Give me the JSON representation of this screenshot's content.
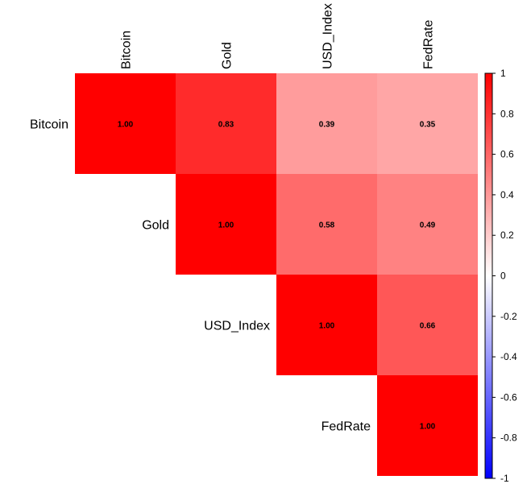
{
  "chart_data": {
    "type": "heatmap",
    "title": "",
    "layout": "upper-triangle",
    "variables": [
      "Bitcoin",
      "Gold",
      "USD_Index",
      "FedRate"
    ],
    "matrix": [
      [
        1.0,
        0.83,
        0.39,
        0.35
      ],
      [
        0.83,
        1.0,
        0.58,
        0.49
      ],
      [
        0.39,
        0.58,
        1.0,
        0.66
      ],
      [
        0.35,
        0.49,
        0.66,
        1.0
      ]
    ],
    "cell_labels": [
      [
        "1.00",
        "0.83",
        "0.39",
        "0.35"
      ],
      [
        "",
        "1.00",
        "0.58",
        "0.49"
      ],
      [
        "",
        "",
        "1.00",
        "0.66"
      ],
      [
        "",
        "",
        "",
        "1.00"
      ]
    ],
    "colorbar": {
      "range": [
        -1,
        1
      ],
      "ticks": [
        1,
        0.8,
        0.6,
        0.4,
        0.2,
        0,
        -0.2,
        -0.4,
        -0.6,
        -0.8,
        -1
      ],
      "tick_labels": [
        "1",
        "0.8",
        "0.6",
        "0.4",
        "0.2",
        "0",
        "-0.2",
        "-0.4",
        "-0.6",
        "-0.8",
        "-1"
      ],
      "colors": {
        "low": "#0000ff",
        "mid": "#ffffff",
        "high": "#ff0000"
      }
    }
  }
}
